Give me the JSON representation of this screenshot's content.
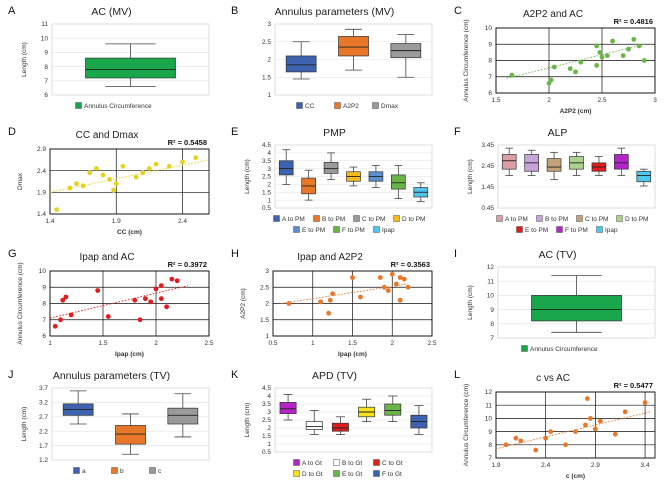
{
  "chart_data": [
    {
      "id": "A",
      "letter": "A",
      "type": "box",
      "title": "AC (MV)",
      "ylabel": "Length (cm)",
      "ylim": [
        6,
        11
      ],
      "yticks": [
        6,
        7,
        8,
        9,
        10,
        11
      ],
      "boxes": [
        {
          "name": "Annulus Circumference",
          "color": "#1aa64a",
          "min": 6.6,
          "q1": 7.2,
          "median": 7.8,
          "q3": 8.6,
          "max": 9.6
        }
      ]
    },
    {
      "id": "B",
      "letter": "B",
      "type": "box",
      "title": "Annulus parameters (MV)",
      "ylabel": "",
      "ylim": [
        1,
        3
      ],
      "yticks": [
        1,
        1.5,
        2,
        2.5,
        3
      ],
      "boxes": [
        {
          "name": "CC",
          "color": "#3d62b0",
          "min": 1.45,
          "q1": 1.65,
          "median": 1.85,
          "q3": 2.1,
          "max": 2.5
        },
        {
          "name": "A2P2",
          "color": "#e8772a",
          "min": 1.7,
          "q1": 2.1,
          "median": 2.35,
          "q3": 2.65,
          "max": 2.85
        },
        {
          "name": "Dmax",
          "color": "#9a9a9a",
          "min": 1.5,
          "q1": 2.05,
          "median": 2.25,
          "q3": 2.45,
          "max": 2.7
        }
      ]
    },
    {
      "id": "C",
      "letter": "C",
      "type": "scatter",
      "title": "A2P2 and AC",
      "r2": "R² = 0.4816",
      "xlabel": "A2P2 (cm)",
      "ylabel": "Annulus Circumference (cm)",
      "xlim": [
        1.5,
        3
      ],
      "ylim": [
        6,
        10
      ],
      "xticks": [
        1.5,
        2,
        2.5,
        3
      ],
      "yticks": [
        6,
        7,
        8,
        9,
        10
      ],
      "color": "#6ab547",
      "points": [
        [
          1.65,
          7.1
        ],
        [
          2.0,
          6.6
        ],
        [
          2.02,
          6.8
        ],
        [
          2.05,
          7.6
        ],
        [
          2.25,
          7.3
        ],
        [
          2.3,
          7.9
        ],
        [
          2.45,
          7.7
        ],
        [
          2.48,
          8.5
        ],
        [
          2.5,
          8.2
        ],
        [
          2.55,
          8.3
        ],
        [
          2.6,
          9.2
        ],
        [
          2.7,
          8.3
        ],
        [
          2.75,
          8.7
        ],
        [
          2.8,
          9.3
        ],
        [
          2.85,
          8.9
        ],
        [
          2.9,
          8.0
        ],
        [
          2.45,
          8.9
        ],
        [
          2.2,
          7.5
        ]
      ],
      "trend": [
        [
          1.6,
          6.9
        ],
        [
          2.9,
          9.0
        ]
      ]
    },
    {
      "id": "D",
      "letter": "D",
      "type": "scatter",
      "title": "CC and Dmax",
      "r2": "R² = 0.5458",
      "xlabel": "CC (cm)",
      "ylabel": "Dmax",
      "xlim": [
        1.4,
        2.6
      ],
      "ylim": [
        1.4,
        2.9
      ],
      "xticks": [
        1.4,
        1.9,
        2.4
      ],
      "yticks": [
        1.4,
        1.9,
        2.4,
        2.9
      ],
      "color": "#e6d21e",
      "points": [
        [
          1.45,
          1.5
        ],
        [
          1.55,
          2.0
        ],
        [
          1.6,
          2.1
        ],
        [
          1.65,
          2.05
        ],
        [
          1.7,
          2.35
        ],
        [
          1.75,
          2.45
        ],
        [
          1.8,
          2.3
        ],
        [
          1.85,
          2.2
        ],
        [
          1.9,
          2.1
        ],
        [
          1.95,
          2.5
        ],
        [
          2.05,
          2.25
        ],
        [
          2.1,
          2.35
        ],
        [
          2.15,
          2.45
        ],
        [
          2.2,
          2.55
        ],
        [
          2.3,
          2.5
        ],
        [
          2.4,
          2.6
        ],
        [
          2.5,
          2.7
        ],
        [
          1.88,
          1.95
        ]
      ],
      "trend": [
        [
          1.4,
          1.9
        ],
        [
          2.6,
          2.65
        ]
      ]
    },
    {
      "id": "E",
      "letter": "E",
      "type": "box",
      "title": "PMP",
      "ylabel": "Length (cm)",
      "ylim": [
        0.5,
        4.5
      ],
      "yticks": [
        0.5,
        1,
        1.5,
        2,
        2.5,
        3,
        3.5,
        4,
        4.5
      ],
      "boxes": [
        {
          "name": "A to PM",
          "color": "#3d62b0",
          "min": 2.0,
          "q1": 2.6,
          "median": 3.0,
          "q3": 3.5,
          "max": 4.2
        },
        {
          "name": "B to PM",
          "color": "#e8772a",
          "min": 1.0,
          "q1": 1.4,
          "median": 1.9,
          "q3": 2.4,
          "max": 2.9
        },
        {
          "name": "C to PM",
          "color": "#9a9a9a",
          "min": 2.3,
          "q1": 2.7,
          "median": 3.0,
          "q3": 3.4,
          "max": 4.0
        },
        {
          "name": "D to PM",
          "color": "#f5bb1d",
          "min": 1.9,
          "q1": 2.2,
          "median": 2.5,
          "q3": 2.8,
          "max": 3.1
        },
        {
          "name": "E to PM",
          "color": "#5b8fd1",
          "min": 1.8,
          "q1": 2.2,
          "median": 2.5,
          "q3": 2.8,
          "max": 3.2
        },
        {
          "name": "F to PM",
          "color": "#6ab547",
          "min": 1.1,
          "q1": 1.7,
          "median": 2.1,
          "q3": 2.6,
          "max": 3.2
        },
        {
          "name": "Ipap",
          "color": "#4fc6ec",
          "min": 0.9,
          "q1": 1.2,
          "median": 1.5,
          "q3": 1.8,
          "max": 2.1
        }
      ]
    },
    {
      "id": "F",
      "letter": "F",
      "type": "box",
      "title": "ALP",
      "ylabel": "Length (cm)",
      "ylim": [
        0.45,
        3.45
      ],
      "yticks": [
        0.45,
        1.45,
        2.45,
        3.45
      ],
      "boxes": [
        {
          "name": "A to PM",
          "color": "#d9a0a6",
          "min": 2.0,
          "q1": 2.3,
          "median": 2.7,
          "q3": 3.0,
          "max": 3.3
        },
        {
          "name": "B to PM",
          "color": "#c7a4d9",
          "min": 2.0,
          "q1": 2.2,
          "median": 2.6,
          "q3": 3.0,
          "max": 3.2
        },
        {
          "name": "C to PM",
          "color": "#c2a378",
          "min": 1.8,
          "q1": 2.2,
          "median": 2.4,
          "q3": 2.8,
          "max": 3.1
        },
        {
          "name": "D to PM",
          "color": "#aad38d",
          "min": 2.0,
          "q1": 2.3,
          "median": 2.6,
          "q3": 2.9,
          "max": 3.1
        },
        {
          "name": "E to PM",
          "color": "#e11c1c",
          "min": 2.0,
          "q1": 2.2,
          "median": 2.4,
          "q3": 2.6,
          "max": 2.9
        },
        {
          "name": "F to PM",
          "color": "#b424c8",
          "min": 2.0,
          "q1": 2.3,
          "median": 2.6,
          "q3": 3.0,
          "max": 3.3
        },
        {
          "name": "Ipap",
          "color": "#4fc6ec",
          "min": 1.5,
          "q1": 1.7,
          "median": 2.0,
          "q3": 2.2,
          "max": 2.3
        }
      ]
    },
    {
      "id": "G",
      "letter": "G",
      "type": "scatter",
      "title": "Ipap and AC",
      "r2": "R² = 0.3972",
      "xlabel": "Ipap (cm)",
      "ylabel": "Annulus Circumference (cm)",
      "xlim": [
        1,
        2.5
      ],
      "ylim": [
        6,
        10
      ],
      "xticks": [
        1,
        1.5,
        2,
        2.5
      ],
      "yticks": [
        6,
        7,
        8,
        9,
        10
      ],
      "color": "#e11c1c",
      "points": [
        [
          1.05,
          6.6
        ],
        [
          1.1,
          7.0
        ],
        [
          1.12,
          8.2
        ],
        [
          1.15,
          8.4
        ],
        [
          1.2,
          7.3
        ],
        [
          1.45,
          8.8
        ],
        [
          1.55,
          7.2
        ],
        [
          1.8,
          8.2
        ],
        [
          1.85,
          7.0
        ],
        [
          1.9,
          8.3
        ],
        [
          1.95,
          8.1
        ],
        [
          2.0,
          8.9
        ],
        [
          2.05,
          9.1
        ],
        [
          2.1,
          7.8
        ],
        [
          2.15,
          9.5
        ],
        [
          2.2,
          9.4
        ],
        [
          2.05,
          8.3
        ]
      ],
      "trend": [
        [
          1.0,
          7.1
        ],
        [
          2.3,
          9.1
        ]
      ]
    },
    {
      "id": "H",
      "letter": "H",
      "type": "scatter",
      "title": "Ipap and A2P2",
      "r2": "R² = 0.3563",
      "xlabel": "Ipap (cm)",
      "ylabel": "A2P2 (cm)",
      "xlim": [
        0.5,
        2.5
      ],
      "ylim": [
        1,
        3
      ],
      "xticks": [
        0.5,
        1,
        1.5,
        2,
        2.5
      ],
      "yticks": [
        1,
        1.5,
        2,
        2.5,
        3
      ],
      "color": "#e8772a",
      "points": [
        [
          0.7,
          2.0
        ],
        [
          1.1,
          2.05
        ],
        [
          1.2,
          1.7
        ],
        [
          1.25,
          2.3
        ],
        [
          1.5,
          2.8
        ],
        [
          1.6,
          2.2
        ],
        [
          1.85,
          2.8
        ],
        [
          1.9,
          2.5
        ],
        [
          1.95,
          2.4
        ],
        [
          2.0,
          2.9
        ],
        [
          2.05,
          2.6
        ],
        [
          2.1,
          2.8
        ],
        [
          2.15,
          2.75
        ],
        [
          2.2,
          2.5
        ],
        [
          2.1,
          2.1
        ],
        [
          1.22,
          2.1
        ]
      ],
      "trend": [
        [
          0.6,
          2.0
        ],
        [
          2.2,
          2.6
        ]
      ]
    },
    {
      "id": "I",
      "letter": "I",
      "type": "box",
      "title": "AC (TV)",
      "ylabel": "Length (cm)",
      "ylim": [
        7,
        12
      ],
      "yticks": [
        7,
        8,
        9,
        10,
        11,
        12
      ],
      "boxes": [
        {
          "name": "Annulus Circumference",
          "color": "#1aa64a",
          "min": 7.4,
          "q1": 8.2,
          "median": 9.0,
          "q3": 10.0,
          "max": 11.4
        }
      ]
    },
    {
      "id": "J",
      "letter": "J",
      "type": "box",
      "title": "Annulus parameters (TV)",
      "ylabel": "Length (cm)",
      "ylim": [
        1.2,
        3.7
      ],
      "yticks": [
        1.2,
        1.7,
        2.2,
        2.7,
        3.2,
        3.7
      ],
      "boxes": [
        {
          "name": "a",
          "color": "#3d62b0",
          "min": 2.45,
          "q1": 2.75,
          "median": 2.95,
          "q3": 3.15,
          "max": 3.6
        },
        {
          "name": "b",
          "color": "#e8772a",
          "min": 1.4,
          "q1": 1.75,
          "median": 2.1,
          "q3": 2.4,
          "max": 2.8
        },
        {
          "name": "c",
          "color": "#9a9a9a",
          "min": 2.0,
          "q1": 2.45,
          "median": 2.75,
          "q3": 3.0,
          "max": 3.5
        }
      ]
    },
    {
      "id": "K",
      "letter": "K",
      "type": "box",
      "title": "APD (TV)",
      "ylabel": "Length (cm)",
      "ylim": [
        0.5,
        4.5
      ],
      "yticks": [
        0.5,
        1,
        1.5,
        2,
        2.5,
        3,
        3.5,
        4,
        4.5
      ],
      "boxes": [
        {
          "name": "A to Gt",
          "color": "#b424c8",
          "min": 2.5,
          "q1": 2.9,
          "median": 3.2,
          "q3": 3.6,
          "max": 4.1
        },
        {
          "name": "B to Gt",
          "color": "#ffffff",
          "min": 1.6,
          "q1": 1.9,
          "median": 2.1,
          "q3": 2.4,
          "max": 3.1
        },
        {
          "name": "C to Gt",
          "color": "#e11c1c",
          "min": 1.6,
          "q1": 1.8,
          "median": 2.0,
          "q3": 2.3,
          "max": 2.7
        },
        {
          "name": "D to Gt",
          "color": "#f5e21d",
          "min": 2.4,
          "q1": 2.7,
          "median": 3.0,
          "q3": 3.3,
          "max": 3.8
        },
        {
          "name": "E to Gt",
          "color": "#6ab547",
          "min": 2.4,
          "q1": 2.8,
          "median": 3.1,
          "q3": 3.5,
          "max": 4.0
        },
        {
          "name": "F to Gt",
          "color": "#3d62b0",
          "min": 1.6,
          "q1": 2.0,
          "median": 2.4,
          "q3": 2.8,
          "max": 3.4
        }
      ]
    },
    {
      "id": "L",
      "letter": "L",
      "type": "scatter",
      "title": "c vs AC",
      "r2": "R² = 0.5477",
      "xlabel": "c (cm)",
      "ylabel": "Annulus Circumference (cm)",
      "xlim": [
        1.9,
        3.5
      ],
      "ylim": [
        7,
        12
      ],
      "xticks": [
        1.9,
        2.4,
        2.9,
        3.4
      ],
      "yticks": [
        7,
        8,
        9,
        10,
        11,
        12
      ],
      "color": "#e8772a",
      "points": [
        [
          2.0,
          8.0
        ],
        [
          2.1,
          8.5
        ],
        [
          2.15,
          8.3
        ],
        [
          2.3,
          7.6
        ],
        [
          2.4,
          8.5
        ],
        [
          2.45,
          9.0
        ],
        [
          2.6,
          8.0
        ],
        [
          2.7,
          9.0
        ],
        [
          2.8,
          9.5
        ],
        [
          2.85,
          10.0
        ],
        [
          2.9,
          9.2
        ],
        [
          2.95,
          9.8
        ],
        [
          3.1,
          8.8
        ],
        [
          3.2,
          10.5
        ],
        [
          3.4,
          11.2
        ],
        [
          2.82,
          11.5
        ]
      ],
      "trend": [
        [
          1.9,
          7.7
        ],
        [
          3.45,
          10.5
        ]
      ]
    }
  ]
}
